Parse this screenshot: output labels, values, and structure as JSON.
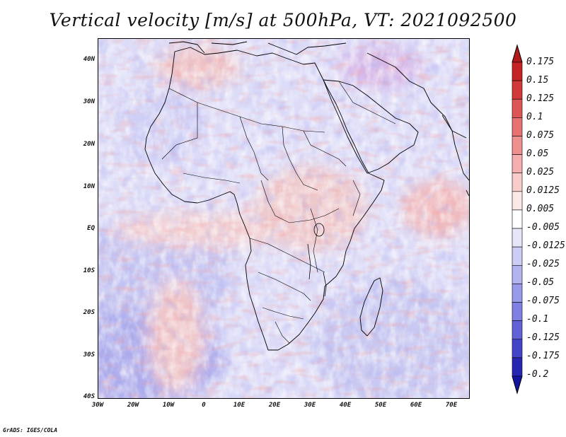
{
  "title": "Vertical velocity [m/s] at 500hPa, VT: 2021092500",
  "credit": "GrADS: IGES/COLA",
  "map": {
    "region": "Africa",
    "lat_range": [
      -40,
      45
    ],
    "lon_range": [
      -30,
      75
    ],
    "y_ticks": [
      "40N",
      "30N",
      "20N",
      "10N",
      "EQ",
      "10S",
      "20S",
      "30S",
      "40S"
    ],
    "x_ticks": [
      "30W",
      "20W",
      "10W",
      "0",
      "10E",
      "20E",
      "30E",
      "40E",
      "50E",
      "60E",
      "70E"
    ]
  },
  "colorbar": {
    "labels": [
      "0.175",
      "0.15",
      "0.125",
      "0.1",
      "0.075",
      "0.05",
      "0.025",
      "0.0125",
      "0.005",
      "-0.005",
      "-0.0125",
      "-0.025",
      "-0.05",
      "-0.075",
      "-0.1",
      "-0.125",
      "-0.175",
      "-0.2"
    ],
    "colors": [
      "#b01a1a",
      "#c42424",
      "#d23a3a",
      "#dd5656",
      "#e67272",
      "#ee9090",
      "#f4aeae",
      "#f9cccc",
      "#fde8e8",
      "#ffffff",
      "#e6e6fa",
      "#ccccf5",
      "#b3b3f0",
      "#9a9aea",
      "#8080e2",
      "#6262d8",
      "#4444c8",
      "#2626b0",
      "#1414a0"
    ]
  }
}
